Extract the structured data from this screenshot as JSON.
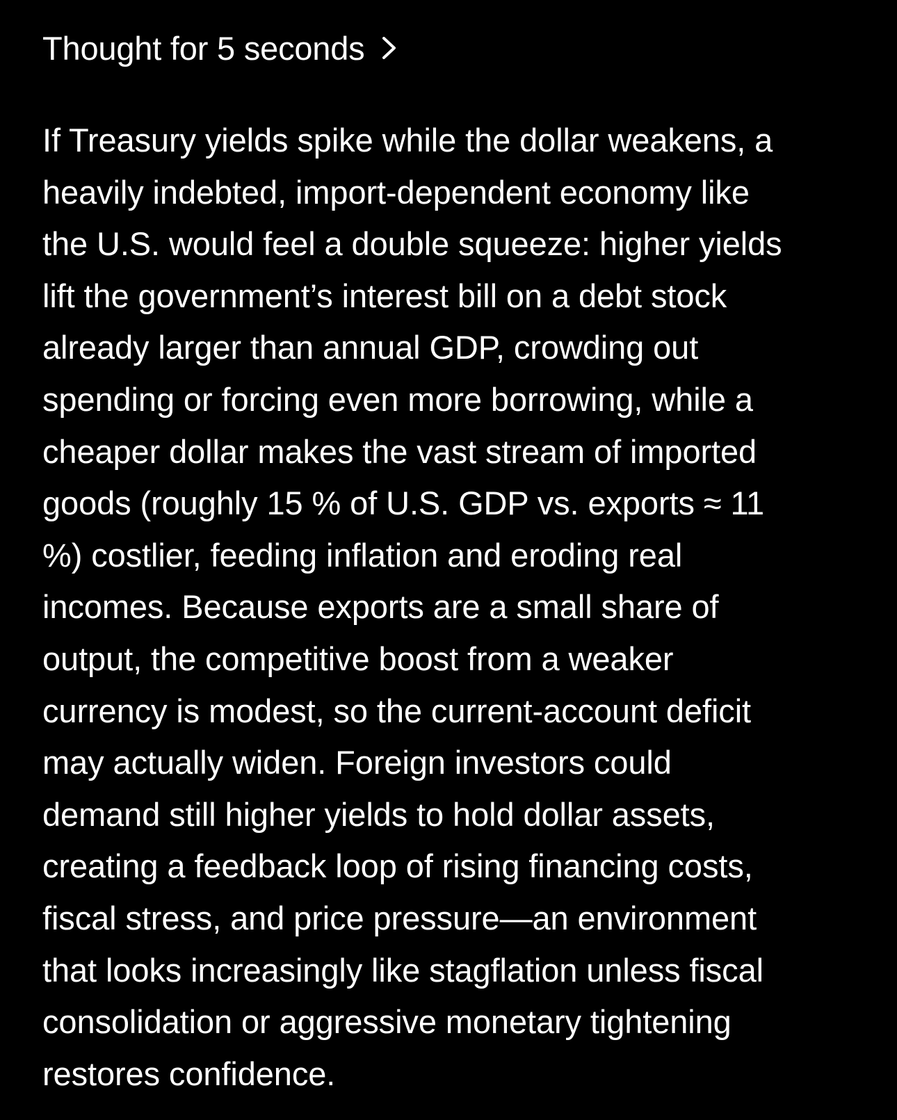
{
  "thought": {
    "label": "Thought for 5 seconds",
    "chevron_icon": "chevron-right-icon"
  },
  "answer": {
    "lines": [
      "If Treasury yields spike while the dollar weakens, a",
      "heavily indebted, import-dependent economy like",
      "the U.S. would feel a double squeeze: higher yields",
      "lift the government’s interest bill on a debt stock",
      "already larger than annual GDP, crowding out",
      "spending or forcing even more borrowing, while a",
      "cheaper dollar makes the vast stream of imported",
      "goods (roughly 15 % of U.S. GDP vs. exports ≈ 11",
      "%) costlier, feeding inflation and eroding real",
      "incomes. Because exports are a small share of",
      "output, the competitive boost from a weaker",
      "currency is modest, so the current-account deficit",
      "may actually widen. Foreign investors could",
      "demand still higher yields to hold dollar assets,",
      "creating a feedback loop of rising financing costs,",
      "fiscal stress, and price pressure—an environment",
      "that looks increasingly like stagflation unless fiscal",
      "consolidation or aggressive monetary tightening",
      "restores confidence."
    ]
  },
  "colors": {
    "background": "#000000",
    "text": "#ffffff"
  }
}
